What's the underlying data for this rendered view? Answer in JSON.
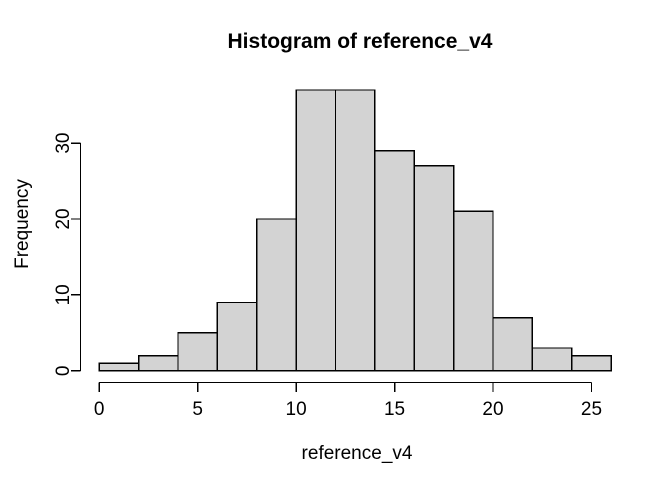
{
  "window": {
    "background": "#ffffff"
  },
  "chart_data": {
    "type": "bar",
    "subtype": "histogram",
    "title": "Histogram of reference_v4",
    "xlabel": "reference_v4",
    "ylabel": "Frequency",
    "bin_edges": [
      0,
      2,
      4,
      6,
      8,
      10,
      12,
      14,
      16,
      18,
      20,
      22,
      24,
      26
    ],
    "counts": [
      1,
      2,
      5,
      9,
      20,
      37,
      37,
      29,
      27,
      21,
      7,
      3,
      2
    ],
    "x_ticks": [
      0,
      5,
      10,
      15,
      20,
      25
    ],
    "y_ticks": [
      0,
      10,
      20,
      30
    ],
    "xlim": [
      0,
      26
    ],
    "ylim": [
      0,
      37
    ],
    "grid": false,
    "legend": "none",
    "bar_fill": "#d3d3d3",
    "bar_stroke": "#000000",
    "axis_color": "#000000",
    "text_color": "#000000"
  }
}
